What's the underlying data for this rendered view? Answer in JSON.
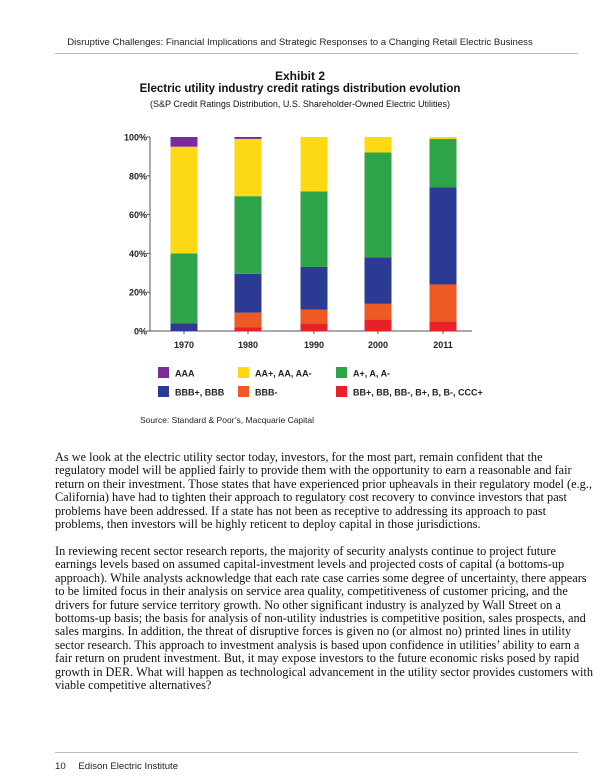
{
  "header": {
    "running_title": "Disruptive Challenges: Financial Implications and Strategic Responses to a Changing Retail Electric Business"
  },
  "exhibit": {
    "label": "Exhibit 2",
    "title": "Electric utility industry credit ratings distribution evolution",
    "subtitle": "(S&P Credit Ratings Distribution, U.S. Shareholder-Owned Electric Utilities)",
    "source": "Source: Standard & Poor’s, Macquarie Capital"
  },
  "chart_data": {
    "type": "bar",
    "stacked": true,
    "categories": [
      "1970",
      "1980",
      "1990",
      "2000",
      "2011"
    ],
    "ylim": [
      0,
      100
    ],
    "yticks": [
      "0%",
      "20%",
      "40%",
      "60%",
      "80%",
      "100%"
    ],
    "grid": false,
    "legend_position": "bottom",
    "series": [
      {
        "name": "BB+, BB, BB-, B+, B, B-, CCC+",
        "color": "#e8202a",
        "values": [
          0,
          2,
          4,
          6,
          5
        ]
      },
      {
        "name": "BBB-",
        "color": "#ef5a24",
        "values": [
          0,
          7.5,
          7,
          8,
          19
        ]
      },
      {
        "name": "BBB+, BBB",
        "color": "#2b3b94",
        "values": [
          4,
          20,
          22,
          24,
          50
        ]
      },
      {
        "name": "A+, A, A-",
        "color": "#2ea449",
        "values": [
          36,
          40,
          39,
          54,
          25
        ]
      },
      {
        "name": "AA+, AA, AA-",
        "color": "#fcd913",
        "values": [
          55,
          29.5,
          28,
          8,
          1
        ]
      },
      {
        "name": "AAA",
        "color": "#7a2d98",
        "values": [
          5,
          1,
          0,
          0,
          0
        ]
      }
    ],
    "legend_order": [
      "AAA",
      "AA+, AA, AA-",
      "A+, A, A-",
      "BBB+, BBB",
      "BBB-",
      "BB+, BB, BB-, B+, B, B-, CCC+"
    ]
  },
  "paragraphs": [
    [
      "As we look at the electric utility sector today, investors, for the most part, remain confident that the",
      "regulatory model will be applied fairly to provide them with the opportunity to earn a reasonable and fair",
      "return on their investment. Those states that have experienced prior upheavals in their regulatory model (e.g.,",
      "California) have had to tighten their approach to regulatory cost recovery to convince investors that past",
      "problems have been addressed. If a state has not been as receptive to addressing its approach to past",
      "problems, then investors will be highly reticent to deploy capital in those jurisdictions."
    ],
    [
      "In reviewing recent sector research reports, the majority of security analysts continue to project future",
      "earnings levels based on assumed capital-investment levels and projected costs of capital (a bottoms-up",
      "approach). While analysts acknowledge that each rate case carries some degree of uncertainty, there appears",
      "to be limited focus in their analysis on service area quality, competitiveness of customer pricing, and the",
      "drivers for future service territory growth. No other significant industry is analyzed by Wall Street on a",
      "bottoms-up basis; the basis for analysis of non-utility industries is competitive position, sales prospects, and",
      "sales margins. In addition, the threat of disruptive forces is given no (or almost no) printed lines in utility",
      "sector research. This approach to investment analysis is based upon confidence in utilities’ ability to earn a",
      "fair return on prudent investment.  But, it may expose investors to the future economic risks posed by rapid",
      "growth in DER. What will happen as technological advancement in the utility sector provides customers with",
      "viable competitive alternatives?"
    ]
  ],
  "footer": {
    "page_number": "10",
    "publisher": "Edison Electric Institute"
  }
}
